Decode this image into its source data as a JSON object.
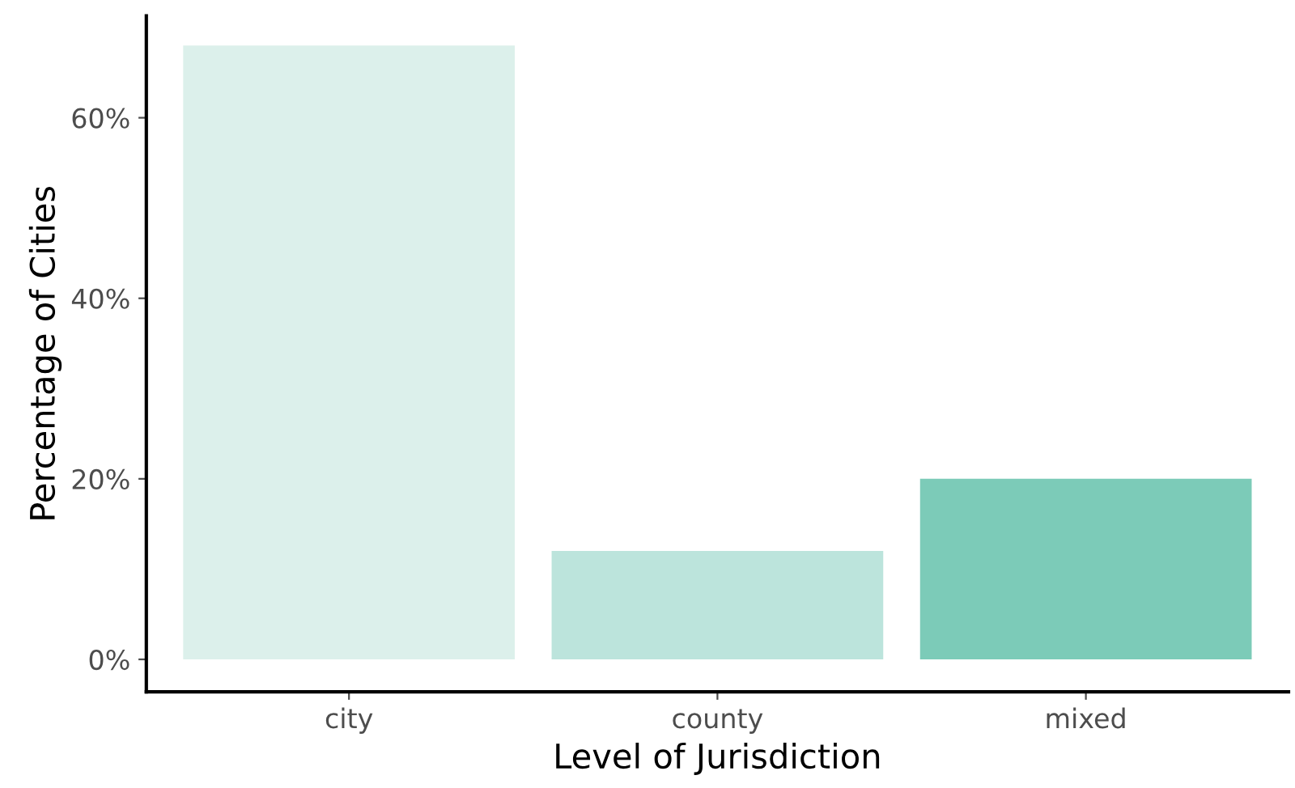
{
  "chart_data": {
    "type": "bar",
    "xlabel": "Level of Jurisdiction",
    "ylabel": "Percentage of Cities",
    "categories": [
      "city",
      "county",
      "mixed"
    ],
    "values": [
      68,
      12,
      20
    ],
    "colors": [
      "#dcf0eb",
      "#bce4dc",
      "#7ccbb8"
    ],
    "ylim": [
      -3.6,
      71.3
    ],
    "yticks": [
      {
        "value": 0,
        "label": "0%"
      },
      {
        "value": 20,
        "label": "20%"
      },
      {
        "value": 40,
        "label": "40%"
      },
      {
        "value": 60,
        "label": "60%"
      }
    ],
    "grid": false,
    "legend": false
  }
}
